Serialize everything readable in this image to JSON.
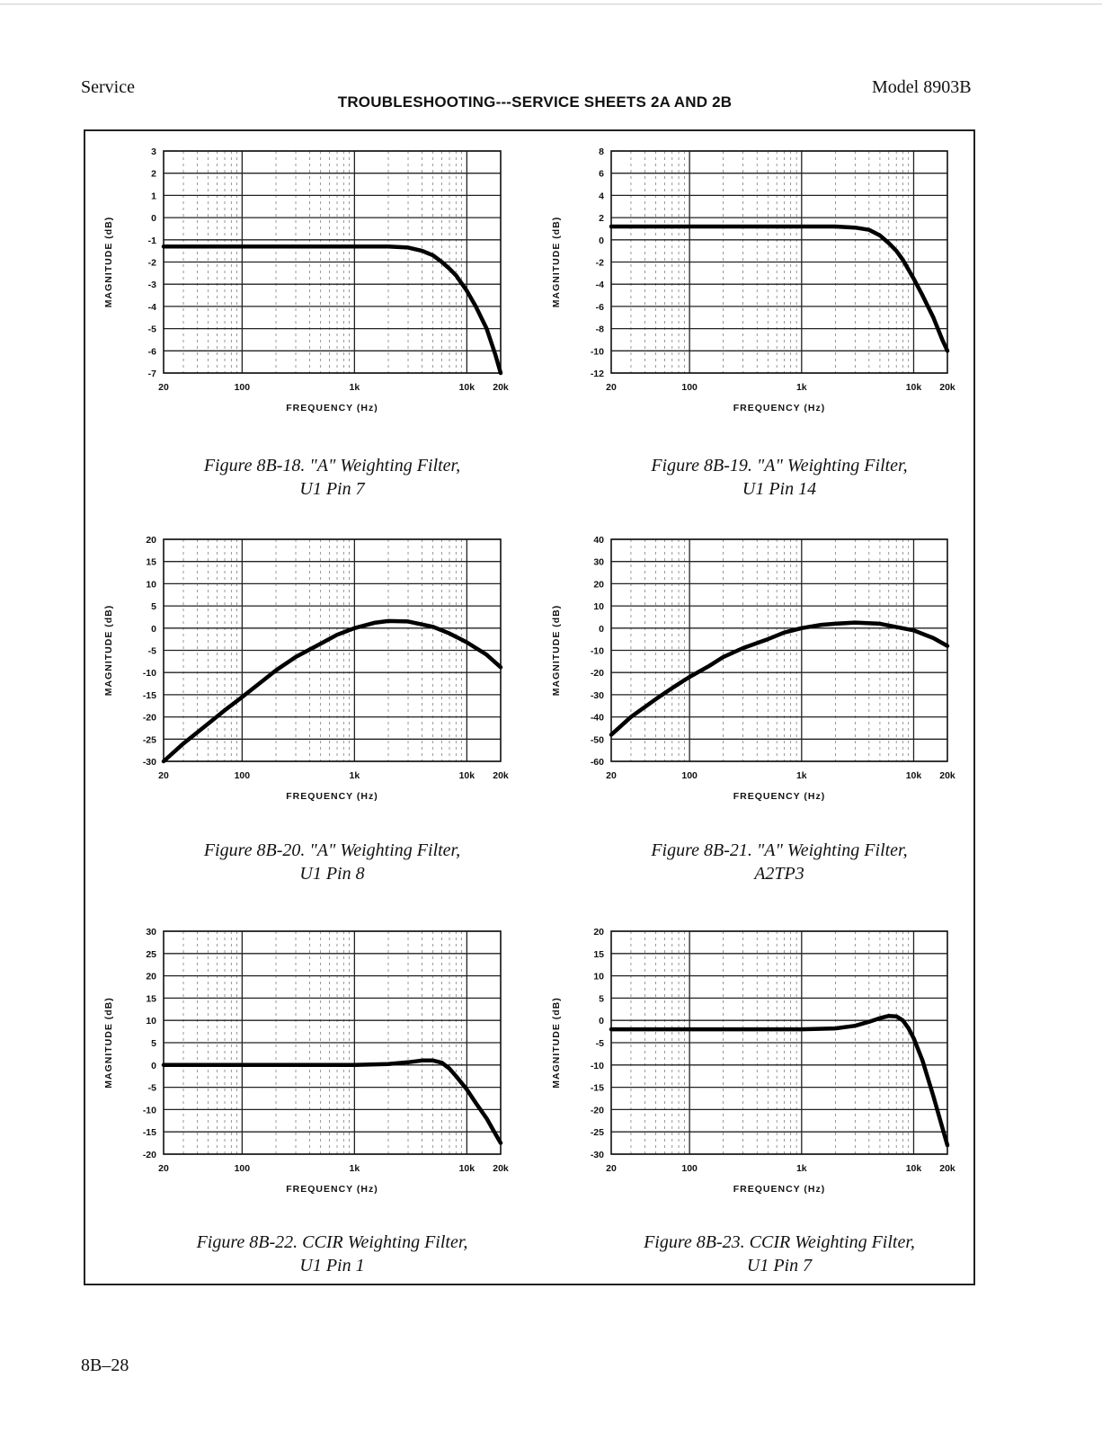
{
  "header": {
    "left": "Service",
    "right": "Model 8903B",
    "title": "TROUBLESHOOTING---SERVICE SHEETS 2A AND 2B"
  },
  "footer": {
    "page_number": "8B–28"
  },
  "chart_data": [
    {
      "type": "line",
      "title": "Figure 8B-18. \"A\" Weighting Filter,",
      "subtitle": "U1 Pin 7",
      "xlabel": "FREQUENCY (Hz)",
      "ylabel": "MAGNITUDE (dB)",
      "xscale": "log",
      "xlim": [
        20,
        20000
      ],
      "ylim": [
        -7,
        3
      ],
      "xticks": [
        20,
        100,
        1000,
        10000,
        20000
      ],
      "xtick_labels": [
        "20",
        "100",
        "1k",
        "10k",
        "20k"
      ],
      "yticks": [
        3,
        2,
        1,
        0,
        -1,
        -2,
        -3,
        -4,
        -5,
        -6,
        -7
      ],
      "ytick_labels": [
        "3",
        "2",
        "1",
        "0",
        "-1",
        "-2",
        "-3",
        "-4",
        "-5",
        "-6",
        "-7"
      ],
      "x": [
        20,
        200,
        1000,
        2000,
        3000,
        4000,
        5000,
        6000,
        7000,
        8000,
        10000,
        12000,
        15000,
        18000,
        20000
      ],
      "y": [
        -1.3,
        -1.3,
        -1.3,
        -1.3,
        -1.35,
        -1.5,
        -1.7,
        -2.0,
        -2.3,
        -2.6,
        -3.3,
        -4.0,
        -5.0,
        -6.2,
        -7.0
      ]
    },
    {
      "type": "line",
      "title": "Figure 8B-19. \"A\" Weighting Filter,",
      "subtitle": "U1 Pin 14",
      "xlabel": "FREQUENCY (Hz)",
      "ylabel": "MAGNITUDE (dB)",
      "xscale": "log",
      "xlim": [
        20,
        20000
      ],
      "ylim": [
        -12,
        8
      ],
      "xticks": [
        20,
        100,
        1000,
        10000,
        20000
      ],
      "xtick_labels": [
        "20",
        "100",
        "1k",
        "10k",
        "20k"
      ],
      "yticks": [
        8,
        6,
        4,
        2,
        0,
        -2,
        -4,
        -6,
        -8,
        -10,
        -12
      ],
      "ytick_labels": [
        "8",
        "6",
        "4",
        "2",
        "0",
        "-2",
        "-4",
        "-6",
        "-8",
        "-10",
        "-12"
      ],
      "x": [
        20,
        200,
        1000,
        2000,
        3000,
        4000,
        5000,
        6000,
        7000,
        8000,
        10000,
        12000,
        15000,
        18000,
        20000
      ],
      "y": [
        1.2,
        1.2,
        1.2,
        1.2,
        1.1,
        0.9,
        0.4,
        -0.3,
        -1.0,
        -1.8,
        -3.5,
        -5.0,
        -7.0,
        -9.0,
        -10.0
      ]
    },
    {
      "type": "line",
      "title": "Figure 8B-20. \"A\" Weighting Filter,",
      "subtitle": "U1 Pin 8",
      "xlabel": "FREQUENCY (Hz)",
      "ylabel": "MAGNITUDE (dB)",
      "xscale": "log",
      "xlim": [
        20,
        20000
      ],
      "ylim": [
        -30,
        20
      ],
      "xticks": [
        20,
        100,
        1000,
        10000,
        20000
      ],
      "xtick_labels": [
        "20",
        "100",
        "1k",
        "10k",
        "20k"
      ],
      "yticks": [
        20,
        15,
        10,
        5,
        0,
        -5,
        -10,
        -15,
        -20,
        -25,
        -30
      ],
      "ytick_labels": [
        "20",
        "15",
        "10",
        "5",
        "0",
        "-5",
        "-10",
        "-15",
        "-20",
        "-25",
        "-30"
      ],
      "x": [
        20,
        30,
        50,
        70,
        100,
        150,
        200,
        300,
        500,
        700,
        1000,
        1500,
        2000,
        3000,
        5000,
        7000,
        10000,
        15000,
        20000
      ],
      "y": [
        -30,
        -26,
        -21.5,
        -18.5,
        -15.5,
        -12,
        -9.5,
        -6.5,
        -3.5,
        -1.5,
        0,
        1.2,
        1.6,
        1.5,
        0.3,
        -1.2,
        -3.2,
        -6.0,
        -8.8
      ]
    },
    {
      "type": "line",
      "title": "Figure 8B-21. \"A\" Weighting Filter,",
      "subtitle": "A2TP3",
      "xlabel": "FREQUENCY (Hz)",
      "ylabel": "MAGNITUDE (dB)",
      "xscale": "log",
      "xlim": [
        20,
        20000
      ],
      "ylim": [
        -60,
        40
      ],
      "xticks": [
        20,
        100,
        1000,
        10000,
        20000
      ],
      "xtick_labels": [
        "20",
        "100",
        "1k",
        "10k",
        "20k"
      ],
      "yticks": [
        40,
        30,
        20,
        10,
        0,
        -10,
        -20,
        -30,
        -40,
        -50,
        -60
      ],
      "ytick_labels": [
        "40",
        "30",
        "20",
        "10",
        "0",
        "-10",
        "-20",
        "-30",
        "-40",
        "-50",
        "-60"
      ],
      "x": [
        20,
        30,
        50,
        70,
        100,
        150,
        200,
        300,
        500,
        700,
        1000,
        1500,
        2000,
        3000,
        5000,
        7000,
        10000,
        15000,
        20000
      ],
      "y": [
        -48,
        -40,
        -32,
        -27,
        -22,
        -17,
        -13,
        -9,
        -5,
        -2,
        0,
        1.5,
        2,
        2.5,
        2,
        0.5,
        -1,
        -4.5,
        -8
      ]
    },
    {
      "type": "line",
      "title": "Figure 8B-22. CCIR Weighting Filter,",
      "subtitle": "U1 Pin 1",
      "xlabel": "FREQUENCY (Hz)",
      "ylabel": "MAGNITUDE (dB)",
      "xscale": "log",
      "xlim": [
        20,
        20000
      ],
      "ylim": [
        -20,
        30
      ],
      "xticks": [
        20,
        100,
        1000,
        10000,
        20000
      ],
      "xtick_labels": [
        "20",
        "100",
        "1k",
        "10k",
        "20k"
      ],
      "yticks": [
        30,
        25,
        20,
        15,
        10,
        5,
        0,
        -5,
        -10,
        -15,
        -20
      ],
      "ytick_labels": [
        "30",
        "25",
        "20",
        "15",
        "10",
        "5",
        "0",
        "-5",
        "-10",
        "-15",
        "-20"
      ],
      "x": [
        20,
        100,
        1000,
        2000,
        3000,
        4000,
        5000,
        6000,
        7000,
        8000,
        10000,
        12000,
        15000,
        18000,
        20000
      ],
      "y": [
        0,
        0,
        0,
        0.2,
        0.6,
        1.0,
        1.0,
        0.5,
        -0.8,
        -2.5,
        -5.5,
        -8.5,
        -12.0,
        -15.5,
        -17.5
      ]
    },
    {
      "type": "line",
      "title": "Figure 8B-23. CCIR Weighting Filter,",
      "subtitle": "U1 Pin 7",
      "xlabel": "FREQUENCY (Hz)",
      "ylabel": "MAGNITUDE (dB)",
      "xscale": "log",
      "xlim": [
        20,
        20000
      ],
      "ylim": [
        -30,
        20
      ],
      "xticks": [
        20,
        100,
        1000,
        10000,
        20000
      ],
      "xtick_labels": [
        "20",
        "100",
        "1k",
        "10k",
        "20k"
      ],
      "yticks": [
        20,
        15,
        10,
        5,
        0,
        -5,
        -10,
        -15,
        -20,
        -25,
        -30
      ],
      "ytick_labels": [
        "20",
        "15",
        "10",
        "5",
        "0",
        "-5",
        "-10",
        "-15",
        "-20",
        "-25",
        "-30"
      ],
      "x": [
        20,
        100,
        1000,
        2000,
        3000,
        4000,
        5000,
        6000,
        7000,
        8000,
        9000,
        10000,
        12000,
        15000,
        18000,
        20000
      ],
      "y": [
        -2,
        -2,
        -2,
        -1.8,
        -1.2,
        -0.3,
        0.5,
        1.0,
        0.9,
        0.0,
        -1.8,
        -4.0,
        -9.0,
        -17.0,
        -24.0,
        -28.0
      ]
    }
  ]
}
